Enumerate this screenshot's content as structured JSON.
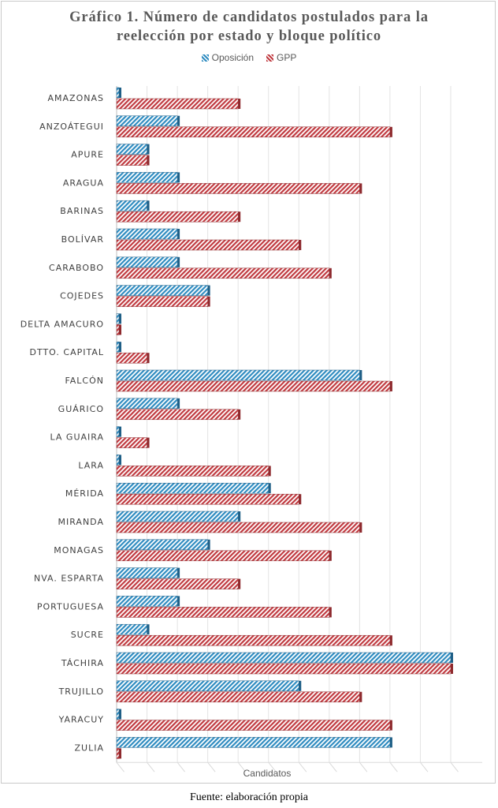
{
  "chart_data": {
    "type": "bar",
    "orientation": "horizontal",
    "title": "Gráfico 1. Número de candidatos postulados para la reelección por estado y bloque político",
    "xlabel": "Candidatos",
    "ylabel": "",
    "xlim": [
      0,
      11
    ],
    "legend_position": "top",
    "categories": [
      "AMAZONAS",
      "ANZOÁTEGUI",
      "APURE",
      "ARAGUA",
      "BARINAS",
      "BOLÍVAR",
      "CARABOBO",
      "COJEDES",
      "DELTA AMACURO",
      "DTTO. CAPITAL",
      "FALCÓN",
      "GUÁRICO",
      "LA GUAIRA",
      "LARA",
      "MÉRIDA",
      "MIRANDA",
      "MONAGAS",
      "NVA. ESPARTA",
      "PORTUGUESA",
      "SUCRE",
      "TÁCHIRA",
      "TRUJILLO",
      "YARACUY",
      "ZULIA"
    ],
    "series": [
      {
        "name": "Oposición",
        "color": "#2e8bc0",
        "values": [
          0,
          2,
          1,
          2,
          1,
          2,
          2,
          3,
          0,
          0,
          8,
          2,
          0,
          0,
          5,
          4,
          3,
          2,
          2,
          1,
          11,
          6,
          0,
          9
        ]
      },
      {
        "name": "GPP",
        "color": "#c0393f",
        "values": [
          4,
          9,
          1,
          8,
          4,
          6,
          7,
          3,
          0,
          1,
          9,
          4,
          1,
          5,
          6,
          8,
          7,
          4,
          7,
          9,
          11,
          8,
          9,
          0
        ]
      }
    ]
  },
  "title": {
    "line1": "Gráfico 1. Número de candidatos postulados para la",
    "line2": "reelección por estado y bloque político"
  },
  "legend": {
    "items": [
      {
        "label": "Oposición",
        "color": "#2e8bc0"
      },
      {
        "label": "GPP",
        "color": "#c0393f"
      }
    ]
  },
  "footer": {
    "source": "Fuente: elaboración propia"
  }
}
